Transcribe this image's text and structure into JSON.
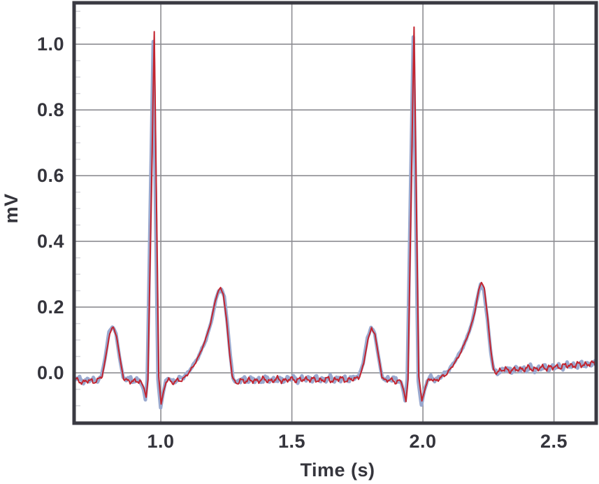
{
  "chart_data": {
    "type": "line",
    "title": "",
    "xlabel": "Time (s)",
    "ylabel": "mV",
    "xlim": [
      0.669,
      2.661
    ],
    "ylim": [
      -0.153,
      1.126
    ],
    "xticks": [
      1.0,
      1.5,
      2.0,
      2.5
    ],
    "xtick_labels": [
      "1.0",
      "1.5",
      "2.0",
      "2.5"
    ],
    "yticks": [
      0.0,
      0.2,
      0.4,
      0.6,
      0.8,
      1.0
    ],
    "ytick_labels_top_down": [
      "1.0",
      "0.8",
      "0.6",
      "0.4",
      "0.2",
      "0.0"
    ],
    "grid": true,
    "legend_position": "none",
    "noise_amplitude": 0.007,
    "colors": {
      "grid": "#8d8d92",
      "border": "#3a3a42",
      "text": "#35353c",
      "background": "#ffffff",
      "minor_tick": "#d6d6db"
    },
    "series": [
      {
        "name": "thick-blue-trace",
        "color": "#9aa9cf",
        "width": 5,
        "points": [
          [
            0.669,
            -0.014
          ],
          [
            0.69,
            -0.02
          ],
          [
            0.712,
            -0.024
          ],
          [
            0.734,
            -0.021
          ],
          [
            0.755,
            -0.024
          ],
          [
            0.773,
            -0.012
          ],
          [
            0.788,
            0.048
          ],
          [
            0.802,
            0.125
          ],
          [
            0.815,
            0.142
          ],
          [
            0.829,
            0.118
          ],
          [
            0.843,
            0.045
          ],
          [
            0.856,
            -0.014
          ],
          [
            0.874,
            -0.021
          ],
          [
            0.896,
            -0.02
          ],
          [
            0.92,
            -0.024
          ],
          [
            0.934,
            -0.052
          ],
          [
            0.941,
            -0.082
          ],
          [
            0.948,
            -0.02
          ],
          [
            0.971,
            1.008
          ],
          [
            0.989,
            -0.02
          ],
          [
            0.999,
            -0.105
          ],
          [
            1.009,
            -0.06
          ],
          [
            1.019,
            -0.026
          ],
          [
            1.031,
            -0.014
          ],
          [
            1.044,
            -0.027
          ],
          [
            1.062,
            -0.022
          ],
          [
            1.082,
            -0.014
          ],
          [
            1.103,
            0.0
          ],
          [
            1.126,
            0.026
          ],
          [
            1.15,
            0.06
          ],
          [
            1.172,
            0.1
          ],
          [
            1.192,
            0.155
          ],
          [
            1.21,
            0.222
          ],
          [
            1.221,
            0.252
          ],
          [
            1.231,
            0.254
          ],
          [
            1.242,
            0.232
          ],
          [
            1.253,
            0.155
          ],
          [
            1.265,
            0.052
          ],
          [
            1.275,
            -0.014
          ],
          [
            1.287,
            -0.03
          ],
          [
            1.3,
            -0.022
          ],
          [
            1.33,
            -0.02
          ],
          [
            1.37,
            -0.022
          ],
          [
            1.41,
            -0.019
          ],
          [
            1.45,
            -0.022
          ],
          [
            1.49,
            -0.017
          ],
          [
            1.53,
            -0.02
          ],
          [
            1.57,
            -0.017
          ],
          [
            1.61,
            -0.02
          ],
          [
            1.65,
            -0.017
          ],
          [
            1.69,
            -0.02
          ],
          [
            1.727,
            -0.017
          ],
          [
            1.755,
            -0.01
          ],
          [
            1.772,
            0.03
          ],
          [
            1.788,
            0.105
          ],
          [
            1.802,
            0.139
          ],
          [
            1.816,
            0.12
          ],
          [
            1.83,
            0.05
          ],
          [
            1.843,
            -0.01
          ],
          [
            1.858,
            -0.019
          ],
          [
            1.882,
            -0.02
          ],
          [
            1.904,
            -0.021
          ],
          [
            1.916,
            -0.028
          ],
          [
            1.925,
            -0.055
          ],
          [
            1.932,
            -0.085
          ],
          [
            1.94,
            -0.018
          ],
          [
            1.963,
            1.022
          ],
          [
            1.982,
            -0.025
          ],
          [
            1.994,
            -0.098
          ],
          [
            2.005,
            -0.055
          ],
          [
            2.016,
            -0.024
          ],
          [
            2.03,
            -0.014
          ],
          [
            2.048,
            -0.02
          ],
          [
            2.068,
            -0.012
          ],
          [
            2.09,
            0.002
          ],
          [
            2.115,
            0.026
          ],
          [
            2.14,
            0.06
          ],
          [
            2.165,
            0.1
          ],
          [
            2.188,
            0.155
          ],
          [
            2.207,
            0.228
          ],
          [
            2.22,
            0.268
          ],
          [
            2.232,
            0.252
          ],
          [
            2.246,
            0.162
          ],
          [
            2.259,
            0.06
          ],
          [
            2.27,
            0.006
          ],
          [
            2.284,
            0.002
          ],
          [
            2.31,
            0.01
          ],
          [
            2.35,
            0.009
          ],
          [
            2.39,
            0.013
          ],
          [
            2.43,
            0.013
          ],
          [
            2.47,
            0.016
          ],
          [
            2.51,
            0.018
          ],
          [
            2.55,
            0.022
          ],
          [
            2.59,
            0.024
          ],
          [
            2.63,
            0.026
          ],
          [
            2.661,
            0.03
          ]
        ]
      },
      {
        "name": "thin-red-trace",
        "color": "#c3242f",
        "width": 2,
        "points": [
          [
            0.669,
            -0.018
          ],
          [
            0.685,
            -0.024
          ],
          [
            0.705,
            -0.028
          ],
          [
            0.725,
            -0.024
          ],
          [
            0.745,
            -0.027
          ],
          [
            0.762,
            -0.02
          ],
          [
            0.776,
            -0.012
          ],
          [
            0.79,
            0.05
          ],
          [
            0.805,
            0.121
          ],
          [
            0.818,
            0.138
          ],
          [
            0.831,
            0.112
          ],
          [
            0.845,
            0.04
          ],
          [
            0.858,
            -0.018
          ],
          [
            0.872,
            -0.026
          ],
          [
            0.89,
            -0.023
          ],
          [
            0.908,
            -0.026
          ],
          [
            0.924,
            -0.028
          ],
          [
            0.937,
            -0.048
          ],
          [
            0.944,
            -0.074
          ],
          [
            0.951,
            -0.02
          ],
          [
            0.975,
            1.038
          ],
          [
            0.992,
            -0.01
          ],
          [
            1.001,
            -0.095
          ],
          [
            1.011,
            -0.056
          ],
          [
            1.02,
            -0.028
          ],
          [
            1.03,
            -0.017
          ],
          [
            1.041,
            -0.03
          ],
          [
            1.056,
            -0.027
          ],
          [
            1.072,
            -0.023
          ],
          [
            1.088,
            -0.016
          ],
          [
            1.105,
            -0.002
          ],
          [
            1.125,
            0.022
          ],
          [
            1.147,
            0.054
          ],
          [
            1.168,
            0.095
          ],
          [
            1.19,
            0.152
          ],
          [
            1.208,
            0.22
          ],
          [
            1.219,
            0.25
          ],
          [
            1.228,
            0.258
          ],
          [
            1.238,
            0.24
          ],
          [
            1.25,
            0.165
          ],
          [
            1.262,
            0.062
          ],
          [
            1.272,
            -0.008
          ],
          [
            1.282,
            -0.028
          ],
          [
            1.292,
            -0.033
          ],
          [
            1.303,
            -0.025
          ],
          [
            1.325,
            -0.022
          ],
          [
            1.355,
            -0.025
          ],
          [
            1.385,
            -0.02
          ],
          [
            1.415,
            -0.024
          ],
          [
            1.445,
            -0.02
          ],
          [
            1.475,
            -0.023
          ],
          [
            1.505,
            -0.019
          ],
          [
            1.535,
            -0.022
          ],
          [
            1.565,
            -0.018
          ],
          [
            1.595,
            -0.023
          ],
          [
            1.625,
            -0.02
          ],
          [
            1.655,
            -0.022
          ],
          [
            1.685,
            -0.018
          ],
          [
            1.715,
            -0.022
          ],
          [
            1.742,
            -0.018
          ],
          [
            1.758,
            -0.012
          ],
          [
            1.774,
            0.028
          ],
          [
            1.79,
            0.102
          ],
          [
            1.804,
            0.136
          ],
          [
            1.817,
            0.118
          ],
          [
            1.831,
            0.048
          ],
          [
            1.844,
            -0.012
          ],
          [
            1.856,
            -0.024
          ],
          [
            1.872,
            -0.021
          ],
          [
            1.89,
            -0.026
          ],
          [
            1.906,
            -0.023
          ],
          [
            1.918,
            -0.03
          ],
          [
            1.928,
            -0.058
          ],
          [
            1.935,
            -0.088
          ],
          [
            1.943,
            -0.02
          ],
          [
            1.966,
            1.052
          ],
          [
            1.984,
            -0.01
          ],
          [
            1.996,
            -0.085
          ],
          [
            2.007,
            -0.05
          ],
          [
            2.018,
            -0.026
          ],
          [
            2.031,
            -0.017
          ],
          [
            2.046,
            -0.024
          ],
          [
            2.062,
            -0.019
          ],
          [
            2.077,
            -0.01
          ],
          [
            2.093,
            0.0
          ],
          [
            2.113,
            0.02
          ],
          [
            2.135,
            0.048
          ],
          [
            2.157,
            0.085
          ],
          [
            2.178,
            0.128
          ],
          [
            2.198,
            0.185
          ],
          [
            2.213,
            0.252
          ],
          [
            2.223,
            0.278
          ],
          [
            2.234,
            0.258
          ],
          [
            2.247,
            0.168
          ],
          [
            2.259,
            0.068
          ],
          [
            2.269,
            0.01
          ],
          [
            2.28,
            0.002
          ],
          [
            2.293,
            0.006
          ],
          [
            2.315,
            0.01
          ],
          [
            2.345,
            0.008
          ],
          [
            2.375,
            0.012
          ],
          [
            2.405,
            0.014
          ],
          [
            2.435,
            0.012
          ],
          [
            2.465,
            0.017
          ],
          [
            2.495,
            0.016
          ],
          [
            2.525,
            0.02
          ],
          [
            2.555,
            0.022
          ],
          [
            2.585,
            0.024
          ],
          [
            2.615,
            0.026
          ],
          [
            2.64,
            0.027
          ],
          [
            2.661,
            0.029
          ]
        ]
      }
    ]
  }
}
